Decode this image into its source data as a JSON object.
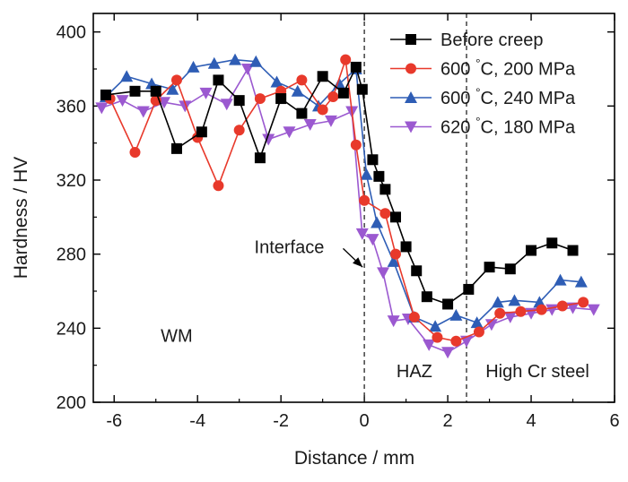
{
  "chart_data": {
    "type": "line",
    "title": "",
    "xlabel": "Distance / mm",
    "ylabel": "Hardness / HV",
    "xlim": [
      -6.5,
      6
    ],
    "ylim": [
      200,
      410
    ],
    "xticks": [
      -6,
      -4,
      -2,
      0,
      2,
      4,
      6
    ],
    "yticks": [
      200,
      240,
      280,
      320,
      360,
      400
    ],
    "grid": false,
    "legend_position": "top-right",
    "series": [
      {
        "name": "Before creep",
        "color": "#000000",
        "marker": "square",
        "x": [
          -6.2,
          -5.5,
          -5.0,
          -4.5,
          -3.9,
          -3.5,
          -3.0,
          -2.5,
          -2.0,
          -1.5,
          -1.0,
          -0.5,
          -0.2,
          -0.05,
          0.2,
          0.35,
          0.5,
          0.75,
          1.0,
          1.25,
          1.5,
          2.0,
          2.5,
          3.0,
          3.5,
          4.0,
          4.5,
          5.0
        ],
        "y": [
          366,
          368,
          368,
          337,
          346,
          374,
          363,
          332,
          364,
          356,
          376,
          367,
          381,
          369,
          331,
          322,
          315,
          300,
          284,
          271,
          257,
          253,
          261,
          273,
          272,
          282,
          286,
          282
        ]
      },
      {
        "name": "600 °C, 200 MPa",
        "color": "#e8392b",
        "marker": "circle",
        "x": [
          -6.1,
          -5.5,
          -5.0,
          -4.5,
          -4.0,
          -3.5,
          -3.0,
          -2.5,
          -2.0,
          -1.5,
          -1.0,
          -0.75,
          -0.45,
          -0.2,
          0.0,
          0.5,
          0.75,
          1.2,
          1.75,
          2.2,
          2.75,
          3.25,
          3.75,
          4.25,
          4.75,
          5.25
        ],
        "y": [
          364,
          335,
          363,
          374,
          343,
          317,
          347,
          364,
          368,
          374,
          358,
          365,
          385,
          339,
          309,
          302,
          280,
          246,
          235,
          233,
          238,
          248,
          249,
          250,
          252,
          254
        ]
      },
      {
        "name": "600 °C, 240 MPa",
        "color": "#2e5db5",
        "marker": "triangle-up",
        "x": [
          -6.2,
          -5.7,
          -5.1,
          -4.6,
          -4.1,
          -3.6,
          -3.1,
          -2.6,
          -2.1,
          -1.6,
          -1.1,
          -0.6,
          -0.2,
          0.05,
          0.3,
          0.7,
          1.2,
          1.7,
          2.2,
          2.7,
          3.2,
          3.6,
          4.2,
          4.7,
          5.2
        ],
        "y": [
          365,
          376,
          372,
          369,
          381,
          383,
          385,
          384,
          373,
          368,
          360,
          372,
          380,
          323,
          297,
          276,
          246,
          241,
          247,
          243,
          254,
          255,
          254,
          266,
          265
        ]
      },
      {
        "name": "620 °C, 180 MPa",
        "color": "#9b59d0",
        "marker": "triangle-down",
        "x": [
          -6.3,
          -5.8,
          -5.3,
          -4.8,
          -4.3,
          -3.8,
          -3.3,
          -2.8,
          -2.3,
          -1.8,
          -1.3,
          -0.8,
          -0.3,
          -0.05,
          0.2,
          0.45,
          0.7,
          1.05,
          1.55,
          2.0,
          2.45,
          3.05,
          3.5,
          4.0,
          4.5,
          5.0,
          5.5
        ],
        "y": [
          359,
          363,
          357,
          362,
          360,
          367,
          361,
          380,
          342,
          346,
          350,
          352,
          357,
          291,
          288,
          270,
          244,
          245,
          231,
          227,
          233,
          242,
          246,
          248,
          250,
          251,
          250
        ]
      }
    ],
    "reference_lines": [
      {
        "x": 0,
        "style": "dashed"
      },
      {
        "x": 2.45,
        "style": "dashed"
      }
    ],
    "annotations": [
      {
        "text": "Interface",
        "x": -1.8,
        "y": 284,
        "arrow_to": [
          0,
          273
        ]
      },
      {
        "text": "WM",
        "x": -4.5,
        "y": 236
      },
      {
        "text": "HAZ",
        "x": 1.2,
        "y": 217
      },
      {
        "text": "High Cr steel",
        "x": 4.15,
        "y": 217
      }
    ]
  }
}
